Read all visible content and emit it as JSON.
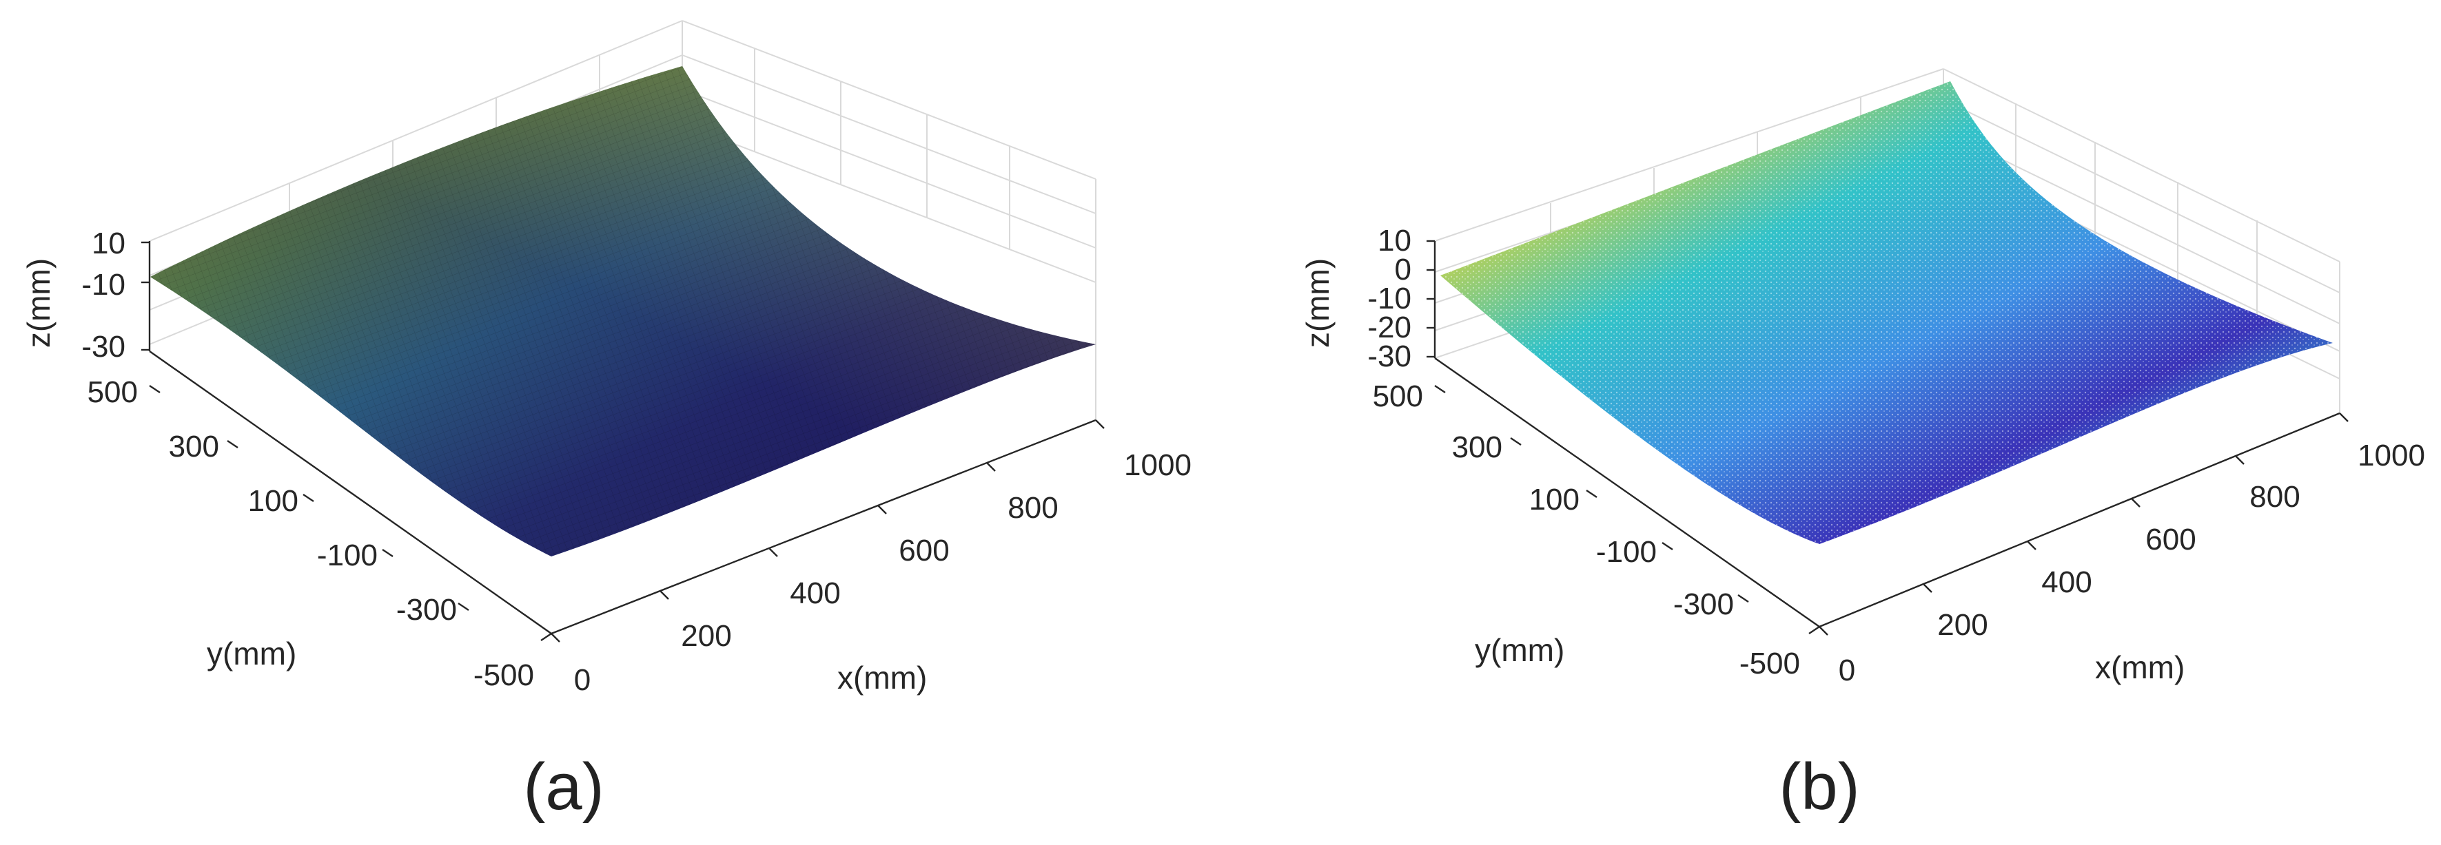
{
  "chart_data": [
    {
      "panel_label": "(a)",
      "type": "surface",
      "xlabel": "x(mm)",
      "ylabel": "y(mm)",
      "zlabel": "z(mm)",
      "xlim": [
        0,
        1000
      ],
      "ylim": [
        -500,
        500
      ],
      "zlim": [
        -30,
        10
      ],
      "x_ticks": [
        "0",
        "200",
        "400",
        "600",
        "800",
        "1000"
      ],
      "y_ticks": [
        "-500",
        "-300",
        "-100",
        "100",
        "300",
        "500"
      ],
      "z_ticks": [
        "10",
        "-10",
        "-30"
      ],
      "colormap": [
        "#1d0f5a",
        "#2a3f86",
        "#2f6b8a",
        "#4c8a55",
        "#8f9a2a",
        "#b8a52a"
      ],
      "grid": true
    },
    {
      "panel_label": "(b)",
      "type": "scatter3d",
      "xlabel": "x(mm)",
      "ylabel": "y(mm)",
      "zlabel": "z(mm)",
      "xlim": [
        0,
        1000
      ],
      "ylim": [
        -500,
        500
      ],
      "zlim": [
        -30,
        10
      ],
      "x_ticks": [
        "0",
        "200",
        "400",
        "600",
        "800",
        "1000"
      ],
      "y_ticks": [
        "-500",
        "-300",
        "-100",
        "100",
        "300",
        "500"
      ],
      "z_ticks": [
        "10",
        "0",
        "-10",
        "-20",
        "-30"
      ],
      "colormap": [
        "#3b2fb8",
        "#4a62e0",
        "#2fa6e0",
        "#22c4c0",
        "#7ed36a",
        "#f2c440",
        "#f4a43a"
      ],
      "grid": true
    }
  ]
}
